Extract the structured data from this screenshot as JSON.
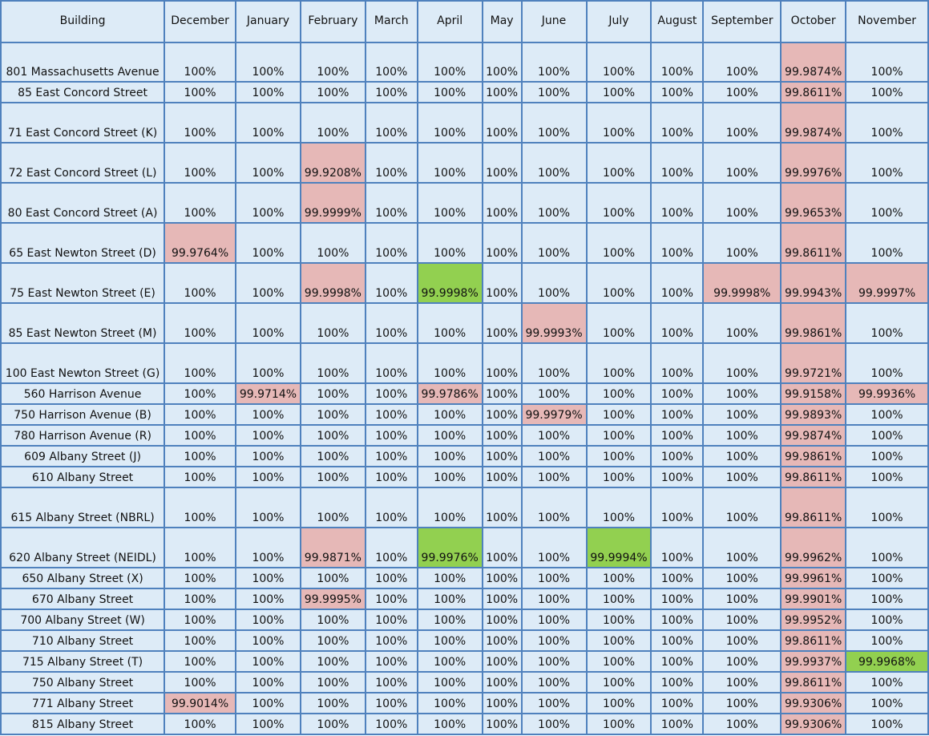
{
  "table": {
    "headers": [
      "Building",
      "December",
      "January",
      "February",
      "March",
      "April",
      "May",
      "June",
      "July",
      "August",
      "September",
      "October",
      "November"
    ],
    "rows": [
      {
        "building": "801 Massachusetts Avenue",
        "values": [
          "100%",
          "100%",
          "100%",
          "100%",
          "100%",
          "100%",
          "100%",
          "100%",
          "100%",
          "100%",
          "99.9874%",
          "100%"
        ]
      },
      {
        "building": "85 East Concord Street",
        "values": [
          "100%",
          "100%",
          "100%",
          "100%",
          "100%",
          "100%",
          "100%",
          "100%",
          "100%",
          "100%",
          "99.8611%",
          "100%"
        ]
      },
      {
        "building": "71 East Concord Street (K)",
        "values": [
          "100%",
          "100%",
          "100%",
          "100%",
          "100%",
          "100%",
          "100%",
          "100%",
          "100%",
          "100%",
          "99.9874%",
          "100%"
        ]
      },
      {
        "building": "72 East Concord Street (L)",
        "values": [
          "100%",
          "100%",
          "99.9208%",
          "100%",
          "100%",
          "100%",
          "100%",
          "100%",
          "100%",
          "100%",
          "99.9976%",
          "100%"
        ]
      },
      {
        "building": "80 East Concord Street (A)",
        "values": [
          "100%",
          "100%",
          "99.9999%",
          "100%",
          "100%",
          "100%",
          "100%",
          "100%",
          "100%",
          "100%",
          "99.9653%",
          "100%"
        ]
      },
      {
        "building": "65 East Newton Street (D)",
        "values": [
          "99.9764%",
          "100%",
          "100%",
          "100%",
          "100%",
          "100%",
          "100%",
          "100%",
          "100%",
          "100%",
          "99.8611%",
          "100%"
        ]
      },
      {
        "building": "75 East Newton Street (E)",
        "values": [
          "100%",
          "100%",
          "99.9998%",
          "100%",
          "99.9998%",
          "100%",
          "100%",
          "100%",
          "100%",
          "99.9998%",
          "99.9943%",
          "99.9997%"
        ]
      },
      {
        "building": "85 East Newton Street (M)",
        "values": [
          "100%",
          "100%",
          "100%",
          "100%",
          "100%",
          "100%",
          "99.9993%",
          "100%",
          "100%",
          "100%",
          "99.9861%",
          "100%"
        ]
      },
      {
        "building": "100 East Newton Street (G)",
        "values": [
          "100%",
          "100%",
          "100%",
          "100%",
          "100%",
          "100%",
          "100%",
          "100%",
          "100%",
          "100%",
          "99.9721%",
          "100%"
        ]
      },
      {
        "building": "560 Harrison Avenue",
        "values": [
          "100%",
          "99.9714%",
          "100%",
          "100%",
          "99.9786%",
          "100%",
          "100%",
          "100%",
          "100%",
          "100%",
          "99.9158%",
          "99.9936%"
        ]
      },
      {
        "building": "750 Harrison Avenue (B)",
        "values": [
          "100%",
          "100%",
          "100%",
          "100%",
          "100%",
          "100%",
          "99.9979%",
          "100%",
          "100%",
          "100%",
          "99.9893%",
          "100%"
        ]
      },
      {
        "building": "780 Harrison Avenue (R)",
        "values": [
          "100%",
          "100%",
          "100%",
          "100%",
          "100%",
          "100%",
          "100%",
          "100%",
          "100%",
          "100%",
          "99.9874%",
          "100%"
        ]
      },
      {
        "building": "609 Albany Street (J)",
        "values": [
          "100%",
          "100%",
          "100%",
          "100%",
          "100%",
          "100%",
          "100%",
          "100%",
          "100%",
          "100%",
          "99.9861%",
          "100%"
        ]
      },
      {
        "building": "610 Albany Street",
        "values": [
          "100%",
          "100%",
          "100%",
          "100%",
          "100%",
          "100%",
          "100%",
          "100%",
          "100%",
          "100%",
          "99.8611%",
          "100%"
        ]
      },
      {
        "building": "615 Albany Street (NBRL)",
        "values": [
          "100%",
          "100%",
          "100%",
          "100%",
          "100%",
          "100%",
          "100%",
          "100%",
          "100%",
          "100%",
          "99.8611%",
          "100%"
        ]
      },
      {
        "building": "620 Albany Street (NEIDL)",
        "values": [
          "100%",
          "100%",
          "99.9871%",
          "100%",
          "99.9976%",
          "100%",
          "100%",
          "99.9994%",
          "100%",
          "100%",
          "99.9962%",
          "100%"
        ]
      },
      {
        "building": "650 Albany Street (X)",
        "values": [
          "100%",
          "100%",
          "100%",
          "100%",
          "100%",
          "100%",
          "100%",
          "100%",
          "100%",
          "100%",
          "99.9961%",
          "100%"
        ]
      },
      {
        "building": "670 Albany Street",
        "values": [
          "100%",
          "100%",
          "99.9995%",
          "100%",
          "100%",
          "100%",
          "100%",
          "100%",
          "100%",
          "100%",
          "99.9901%",
          "100%"
        ]
      },
      {
        "building": "700 Albany Street (W)",
        "values": [
          "100%",
          "100%",
          "100%",
          "100%",
          "100%",
          "100%",
          "100%",
          "100%",
          "100%",
          "100%",
          "99.9952%",
          "100%"
        ]
      },
      {
        "building": "710 Albany Street",
        "values": [
          "100%",
          "100%",
          "100%",
          "100%",
          "100%",
          "100%",
          "100%",
          "100%",
          "100%",
          "100%",
          "99.8611%",
          "100%"
        ]
      },
      {
        "building": "715 Albany Street (T)",
        "values": [
          "100%",
          "100%",
          "100%",
          "100%",
          "100%",
          "100%",
          "100%",
          "100%",
          "100%",
          "100%",
          "99.9937%",
          "99.9968%"
        ]
      },
      {
        "building": "750 Albany Street",
        "values": [
          "100%",
          "100%",
          "100%",
          "100%",
          "100%",
          "100%",
          "100%",
          "100%",
          "100%",
          "100%",
          "99.8611%",
          "100%"
        ]
      },
      {
        "building": "771 Albany Street",
        "values": [
          "99.9014%",
          "100%",
          "100%",
          "100%",
          "100%",
          "100%",
          "100%",
          "100%",
          "100%",
          "100%",
          "99.9306%",
          "100%"
        ]
      },
      {
        "building": "815 Albany Street",
        "values": [
          "100%",
          "100%",
          "100%",
          "100%",
          "100%",
          "100%",
          "100%",
          "100%",
          "100%",
          "100%",
          "99.9306%",
          "100%"
        ]
      }
    ],
    "highlight_colors": {
      "pink": "#e6b8b7",
      "green": "#92d050",
      "cell": "#ddebf7",
      "grid": "#4f81bd"
    },
    "green_cells": [
      [
        6,
        4
      ],
      [
        15,
        4
      ],
      [
        15,
        7
      ],
      [
        20,
        11
      ]
    ]
  }
}
